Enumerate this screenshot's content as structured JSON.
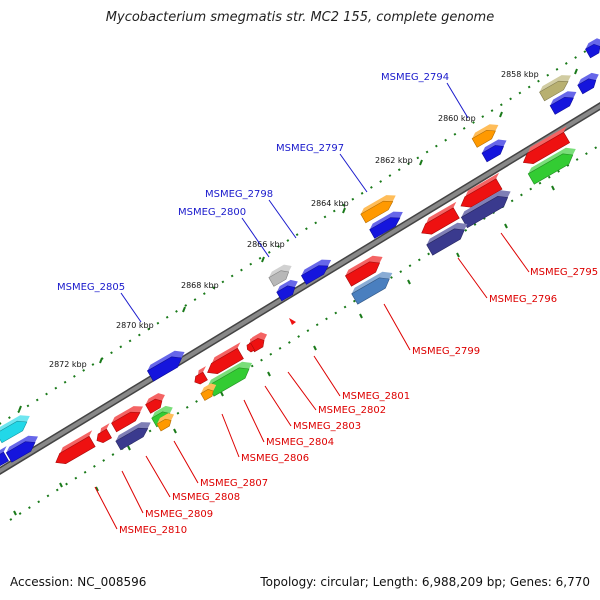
{
  "title": "Mycobacterium smegmatis str. MC2 155, complete genome",
  "footer": {
    "accession": "Accession: NC_008596",
    "summary": "Topology: circular; Length: 6,988,209 bp; Genes: 6,770"
  },
  "colors": {
    "backbone": "#888888",
    "tick": "#1a7a1a",
    "upper_label": "#1a1acc",
    "lower_label": "#dd0000",
    "red": "#ee1111",
    "blue": "#1515dd",
    "orange": "#ff9900",
    "green": "#33cc33",
    "navy": "#3a3a8e",
    "steel": "#4a7fbf",
    "olive": "#b8b070",
    "gray": "#b8b8b8",
    "cyan": "#22d8e8"
  },
  "ruler": [
    {
      "label": "2858 kbp"
    },
    {
      "label": "2860 kbp"
    },
    {
      "label": "2862 kbp"
    },
    {
      "label": "2864 kbp"
    },
    {
      "label": "2866 kbp"
    },
    {
      "label": "2868 kbp"
    },
    {
      "label": "2870 kbp"
    },
    {
      "label": "2872 kbp"
    }
  ],
  "upper_labels": [
    {
      "text": "MSMEG_2794"
    },
    {
      "text": "MSMEG_2797"
    },
    {
      "text": "MSMEG_2798"
    },
    {
      "text": "MSMEG_2800"
    },
    {
      "text": "MSMEG_2805"
    }
  ],
  "lower_labels": [
    {
      "text": "MSMEG_2795"
    },
    {
      "text": "MSMEG_2796"
    },
    {
      "text": "MSMEG_2799"
    },
    {
      "text": "MSMEG_2801"
    },
    {
      "text": "MSMEG_2802"
    },
    {
      "text": "MSMEG_2803"
    },
    {
      "text": "MSMEG_2804"
    },
    {
      "text": "MSMEG_2806"
    },
    {
      "text": "MSMEG_2807"
    },
    {
      "text": "MSMEG_2808"
    },
    {
      "text": "MSMEG_2809"
    },
    {
      "text": "MSMEG_2810"
    }
  ]
}
